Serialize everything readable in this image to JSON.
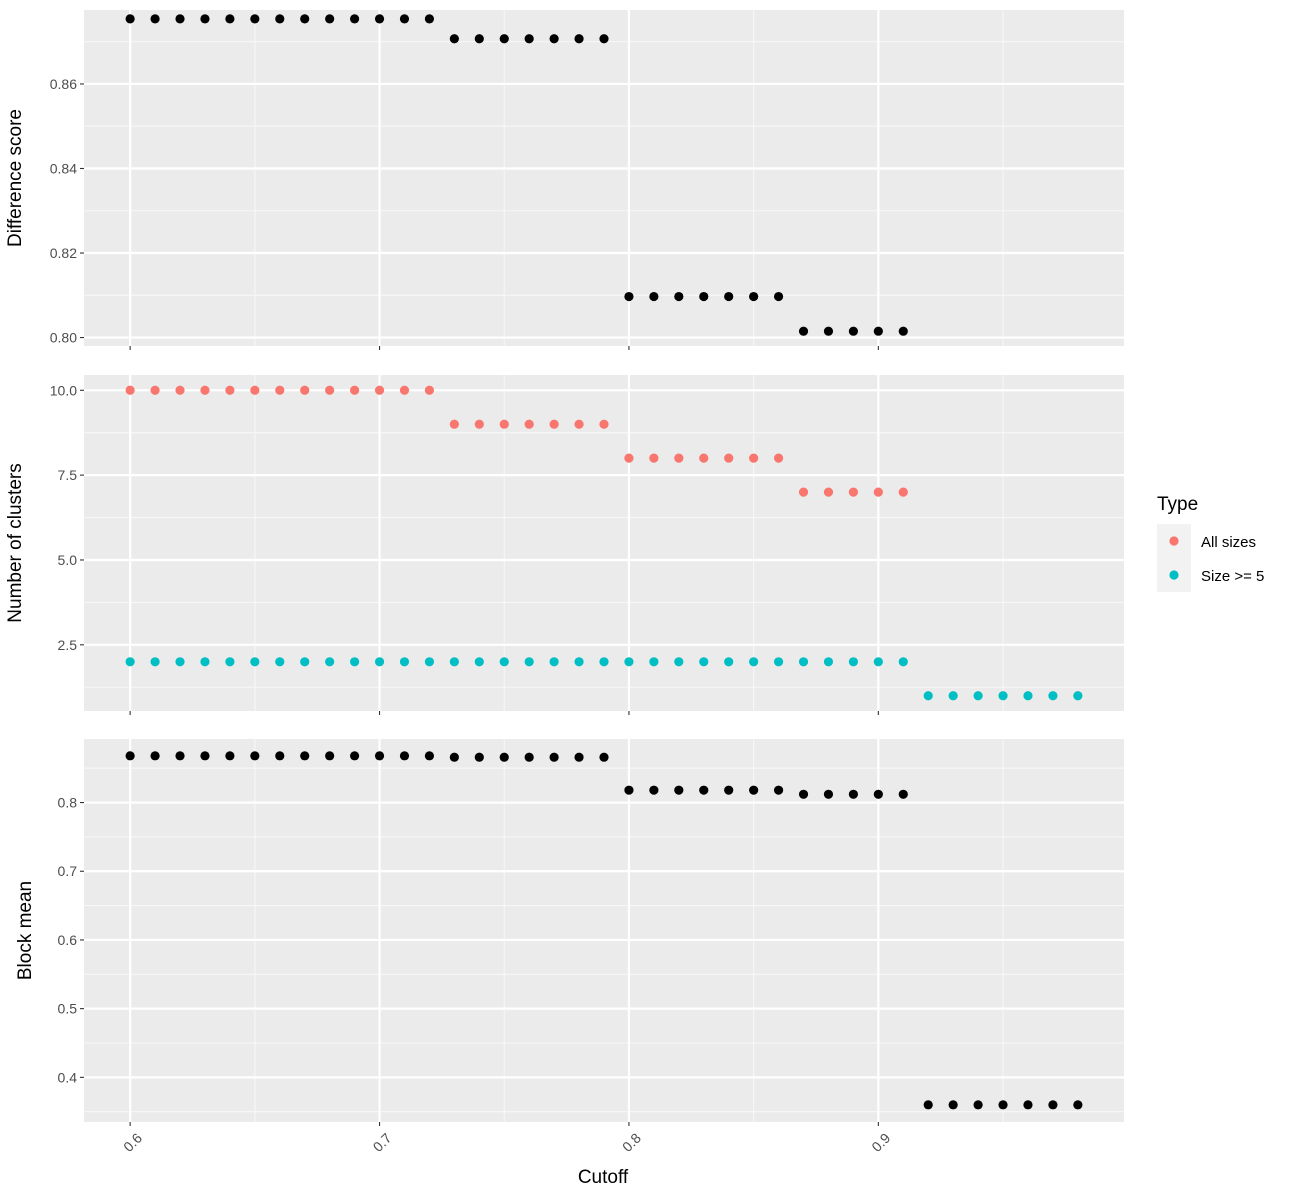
{
  "chart_data": [
    {
      "type": "scatter",
      "ylabel": "Difference score",
      "xlim": [
        0.5815,
        0.9985
      ],
      "ylim": [
        0.798,
        0.8775
      ],
      "yticks": [
        0.8,
        0.82,
        0.84,
        0.86
      ],
      "ytick_labels": [
        "0.80",
        "0.82",
        "0.84",
        "0.86"
      ],
      "ytick_minor": [
        0.81,
        0.83,
        0.85,
        0.87
      ],
      "series": [
        {
          "color": "#000000",
          "x": [
            0.6,
            0.61,
            0.62,
            0.63,
            0.64,
            0.65,
            0.66,
            0.67,
            0.68,
            0.69,
            0.7,
            0.71,
            0.72,
            0.73,
            0.74,
            0.75,
            0.76,
            0.77,
            0.78,
            0.79,
            0.8,
            0.81,
            0.82,
            0.83,
            0.84,
            0.85,
            0.86,
            0.87,
            0.88,
            0.89,
            0.9,
            0.91
          ],
          "y": [
            0.8754,
            0.8754,
            0.8754,
            0.8754,
            0.8754,
            0.8754,
            0.8754,
            0.8754,
            0.8754,
            0.8754,
            0.8754,
            0.8754,
            0.8754,
            0.8707,
            0.8707,
            0.8707,
            0.8707,
            0.8707,
            0.8707,
            0.8707,
            0.8097,
            0.8097,
            0.8097,
            0.8097,
            0.8097,
            0.8097,
            0.8097,
            0.8015,
            0.8015,
            0.8015,
            0.8015,
            0.8015
          ]
        }
      ]
    },
    {
      "type": "scatter",
      "ylabel": "Number of clusters",
      "xlim": [
        0.5815,
        0.9985
      ],
      "ylim": [
        0.55,
        10.45
      ],
      "yticks": [
        2.5,
        5.0,
        7.5,
        10.0
      ],
      "ytick_labels": [
        "2.5",
        "5.0",
        "7.5",
        "10.0"
      ],
      "ytick_minor": [
        1.25,
        3.75,
        6.25,
        8.75
      ],
      "legend": {
        "title": "Type",
        "position": "right",
        "entries": [
          {
            "label": "All sizes",
            "color": "#F8766D"
          },
          {
            "label": "Size >= 5",
            "color": "#00BFC4"
          }
        ]
      },
      "series": [
        {
          "name": "All sizes",
          "color": "#F8766D",
          "x": [
            0.6,
            0.61,
            0.62,
            0.63,
            0.64,
            0.65,
            0.66,
            0.67,
            0.68,
            0.69,
            0.7,
            0.71,
            0.72,
            0.73,
            0.74,
            0.75,
            0.76,
            0.77,
            0.78,
            0.79,
            0.8,
            0.81,
            0.82,
            0.83,
            0.84,
            0.85,
            0.86,
            0.87,
            0.88,
            0.89,
            0.9,
            0.91
          ],
          "y": [
            10,
            10,
            10,
            10,
            10,
            10,
            10,
            10,
            10,
            10,
            10,
            10,
            10,
            9,
            9,
            9,
            9,
            9,
            9,
            9,
            8,
            8,
            8,
            8,
            8,
            8,
            8,
            7,
            7,
            7,
            7,
            7
          ]
        },
        {
          "name": "Size >= 5",
          "color": "#00BFC4",
          "x": [
            0.6,
            0.61,
            0.62,
            0.63,
            0.64,
            0.65,
            0.66,
            0.67,
            0.68,
            0.69,
            0.7,
            0.71,
            0.72,
            0.73,
            0.74,
            0.75,
            0.76,
            0.77,
            0.78,
            0.79,
            0.8,
            0.81,
            0.82,
            0.83,
            0.84,
            0.85,
            0.86,
            0.87,
            0.88,
            0.89,
            0.9,
            0.91,
            0.92,
            0.93,
            0.94,
            0.95,
            0.96,
            0.97,
            0.98
          ],
          "y": [
            2,
            2,
            2,
            2,
            2,
            2,
            2,
            2,
            2,
            2,
            2,
            2,
            2,
            2,
            2,
            2,
            2,
            2,
            2,
            2,
            2,
            2,
            2,
            2,
            2,
            2,
            2,
            2,
            2,
            2,
            2,
            2,
            1,
            1,
            1,
            1,
            1,
            1,
            1
          ]
        }
      ]
    },
    {
      "type": "scatter",
      "ylabel": "Block mean",
      "xlabel": "Cutoff",
      "xlim": [
        0.5815,
        0.9985
      ],
      "ylim": [
        0.335,
        0.8925
      ],
      "yticks": [
        0.4,
        0.5,
        0.6,
        0.7,
        0.8
      ],
      "ytick_labels": [
        "0.4",
        "0.5",
        "0.6",
        "0.7",
        "0.8"
      ],
      "ytick_minor": [
        0.35,
        0.45,
        0.55,
        0.65,
        0.75,
        0.85
      ],
      "series": [
        {
          "color": "#000000",
          "x": [
            0.6,
            0.61,
            0.62,
            0.63,
            0.64,
            0.65,
            0.66,
            0.67,
            0.68,
            0.69,
            0.7,
            0.71,
            0.72,
            0.73,
            0.74,
            0.75,
            0.76,
            0.77,
            0.78,
            0.79,
            0.8,
            0.81,
            0.82,
            0.83,
            0.84,
            0.85,
            0.86,
            0.87,
            0.88,
            0.89,
            0.9,
            0.91,
            0.92,
            0.93,
            0.94,
            0.95,
            0.96,
            0.97,
            0.98
          ],
          "y": [
            0.868,
            0.868,
            0.868,
            0.868,
            0.868,
            0.868,
            0.868,
            0.868,
            0.868,
            0.868,
            0.868,
            0.868,
            0.868,
            0.866,
            0.866,
            0.866,
            0.866,
            0.866,
            0.866,
            0.866,
            0.818,
            0.818,
            0.818,
            0.818,
            0.818,
            0.818,
            0.818,
            0.812,
            0.812,
            0.812,
            0.812,
            0.812,
            0.36,
            0.36,
            0.36,
            0.36,
            0.36,
            0.36,
            0.36
          ]
        }
      ]
    }
  ],
  "x_axis": {
    "title": "Cutoff",
    "ticks": [
      0.6,
      0.7,
      0.8,
      0.9
    ],
    "tick_labels": [
      "0.6",
      "0.7",
      "0.8",
      "0.9"
    ],
    "minor": [
      0.65,
      0.75,
      0.85,
      0.95
    ],
    "tick_label_rotation": -45
  },
  "style": {
    "panel_bg": "#EBEBEB",
    "grid_major": "#FFFFFF",
    "grid_minor": "#F7F7F7",
    "tick_color": "#333333"
  }
}
